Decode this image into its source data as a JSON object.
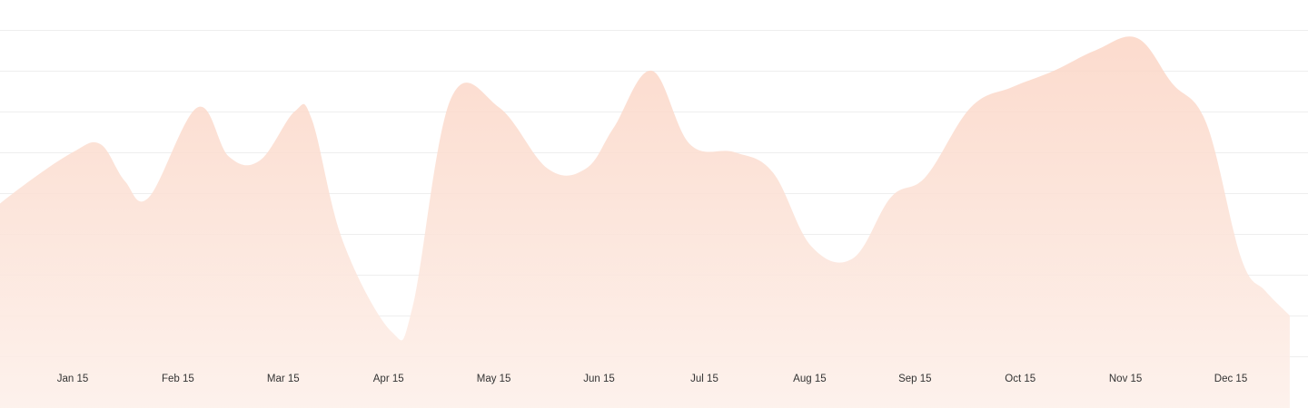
{
  "chart_data": {
    "type": "area",
    "title": "",
    "xlabel": "",
    "ylabel": "",
    "x_tick_labels": [
      "Jan 15",
      "Feb 15",
      "Mar 15",
      "Apr 15",
      "May 15",
      "Jun 15",
      "Jul 15",
      "Aug 15",
      "Sep 15",
      "Oct 15",
      "Nov 15",
      "Dec 15"
    ],
    "ylim": [
      0,
      8
    ],
    "grid": "horizontal",
    "legend": "none",
    "fill_color_top": "#fbd5c5",
    "fill_color_bottom": "#fdf0ea",
    "grid_color": "#eeeeee",
    "tick_label_color": "#333333",
    "series": [
      {
        "x": [
          "Dec 20",
          "Jan 1",
          "Jan 15",
          "Jan 23",
          "Jan 30",
          "Feb 6",
          "Feb 20",
          "Mar 1",
          "Mar 10",
          "Mar 20",
          "Mar 25",
          "Apr 3",
          "Apr 17",
          "Apr 23",
          "May 4",
          "May 18",
          "Jun 1",
          "Jun 12",
          "Jun 20",
          "Jul 1",
          "Jul 12",
          "Jul 25",
          "Aug 5",
          "Aug 16",
          "Aug 28",
          "Sep 8",
          "Sep 18",
          "Oct 1",
          "Oct 13",
          "Oct 25",
          "Nov 6",
          "Nov 18",
          "Nov 28",
          "Dec 8",
          "Dec 18",
          "Dec 25",
          "Jan 1"
        ],
        "values": [
          3.4,
          4.2,
          5.0,
          5.2,
          4.3,
          3.9,
          6.1,
          4.9,
          4.8,
          6.0,
          5.8,
          2.8,
          0.6,
          1.2,
          6.3,
          6.1,
          4.6,
          4.6,
          5.6,
          7.0,
          5.2,
          5.0,
          4.5,
          2.7,
          2.4,
          3.9,
          4.4,
          6.1,
          6.6,
          7.0,
          7.5,
          7.8,
          6.7,
          5.7,
          2.4,
          1.6,
          1.0
        ]
      }
    ]
  }
}
